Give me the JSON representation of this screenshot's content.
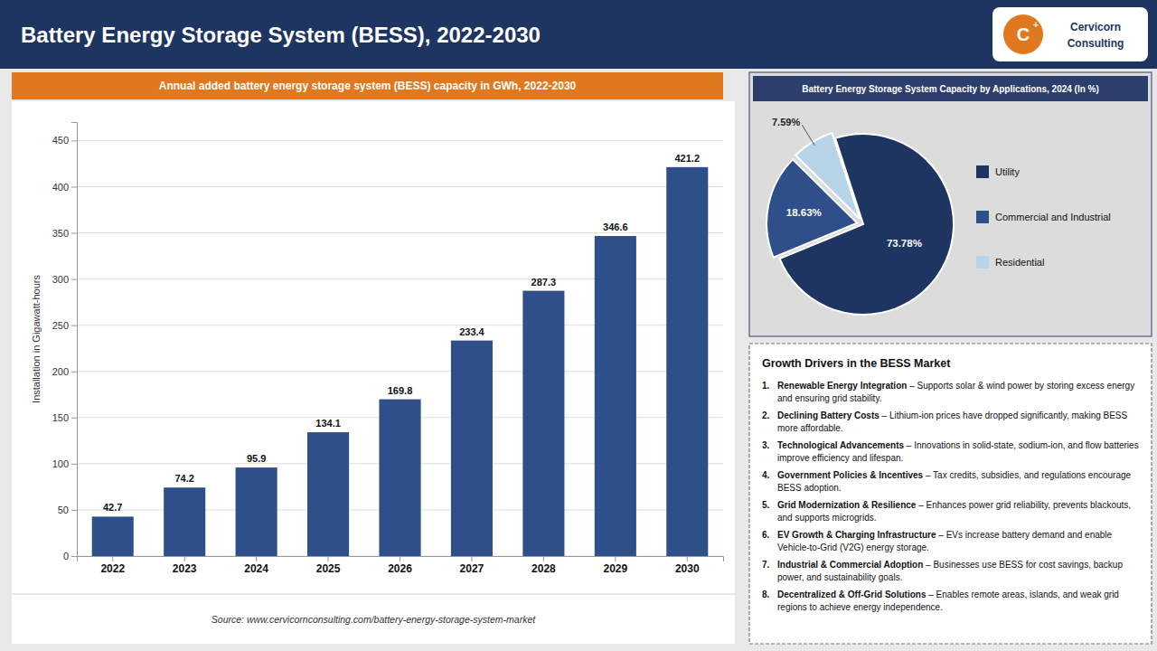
{
  "chart_data": [
    {
      "type": "bar",
      "title": "Battery Energy Storage System (BESS), 2022-2030",
      "subtitle": "Annual added battery energy storage system (BESS) capacity in GWh, 2022-2030",
      "y_label": "Installation in Gigawatt-hours",
      "categories": [
        "2022",
        "2023",
        "2024",
        "2025",
        "2026",
        "2027",
        "2028",
        "2029",
        "2030"
      ],
      "values": [
        42.7,
        74.2,
        95.9,
        134.1,
        169.8,
        233.4,
        287.3,
        346.6,
        421.2
      ],
      "color": "#2e4f8a",
      "ylim": [
        0,
        470
      ],
      "yticks": [
        0,
        50,
        100,
        150,
        200,
        250,
        300,
        350,
        400,
        450
      ],
      "grid": true,
      "data_labels": true,
      "annotations": [
        "Source: www.cervicornconsulting.com/battery-energy-storage-system-market",
        "C",
        "+",
        "Cervicorn",
        "Consulting",
        "Growth Drivers in the BESS Market",
        "1.",
        "Renewable Energy Integration",
        " – Supports solar & wind power by storing excess energy and ensuring grid stability.",
        "2.",
        "Declining Battery Costs",
        " – Lithium-ion prices have dropped significantly, making BESS more affordable.",
        "3.",
        "Technological Advancements",
        " – Innovations in solid-state, sodium-ion, and flow batteries improve efficiency and lifespan.",
        "4.",
        "Government Policies & Incentives",
        " – Tax credits, subsidies, and regulations encourage BESS adoption.",
        "5.",
        "Grid Modernization & Resilience",
        " – Enhances power grid reliability, prevents blackouts, and supports microgrids.",
        "6.",
        "EV Growth & Charging Infrastructure",
        " – EVs increase battery demand and enable Vehicle-to-Grid (V2G) energy storage.",
        "7.",
        "Industrial & Commercial Adoption",
        " – Businesses use BESS for cost savings, backup power, and sustainability goals.",
        "8.",
        "Decentralized & Off-Grid Solutions",
        " – Enables remote areas, islands, and weak grid regions to achieve energy independence."
      ]
    },
    {
      "type": "pie",
      "title": "Battery Energy Storage System Capacity by Applications, 2024 (In %)",
      "categories": [
        "Utility",
        "Commercial and Industrial",
        "Residential"
      ],
      "values": [
        73.78,
        18.63,
        7.59
      ],
      "value_labels": [
        "73.78%",
        "18.63%",
        "7.59%"
      ],
      "colors": [
        "#1e3461",
        "#2e4f8a",
        "#b8d4e8"
      ],
      "data_labels": true,
      "legend": "right"
    }
  ]
}
